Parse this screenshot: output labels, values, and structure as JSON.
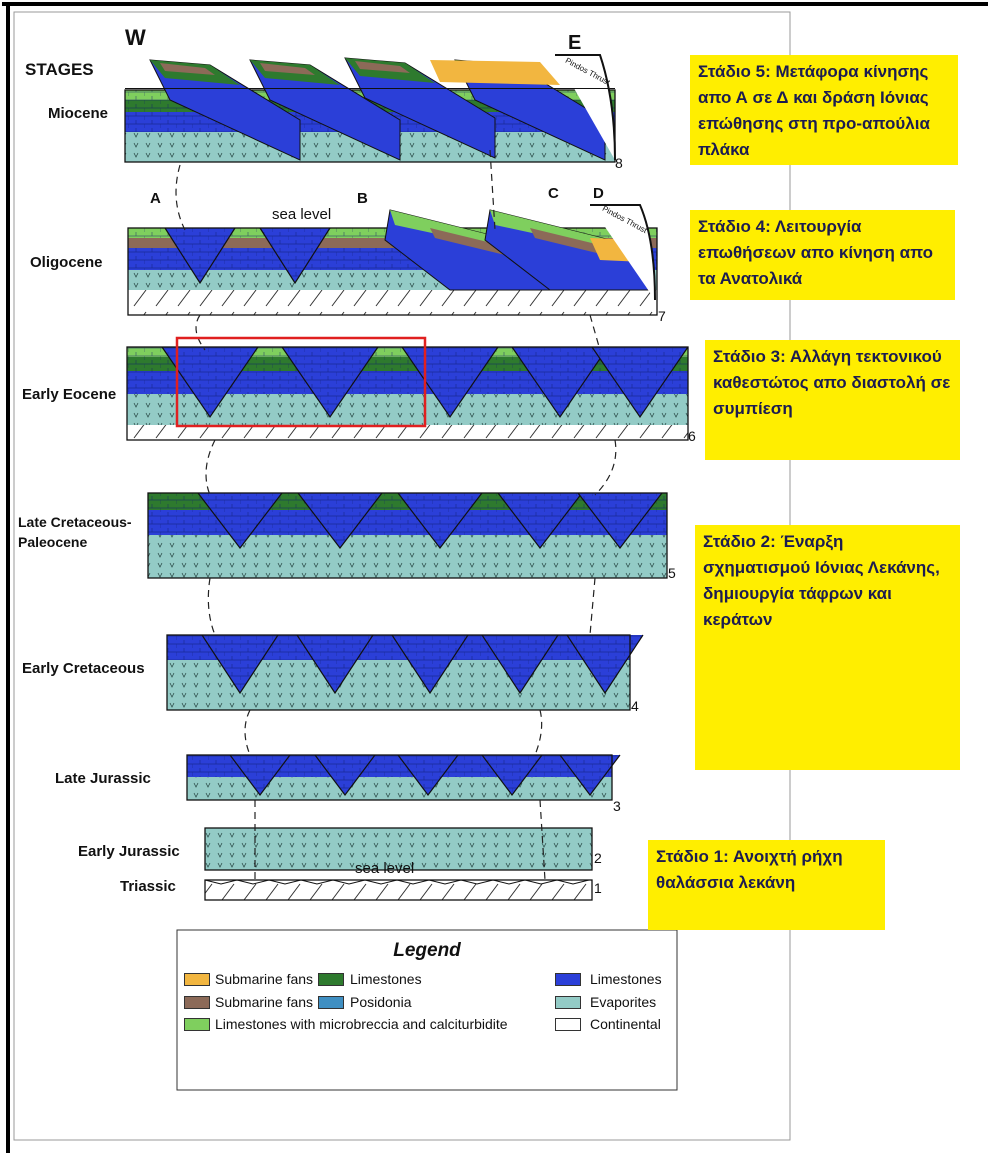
{
  "header": {
    "west": "W",
    "east": "E",
    "stages_title": "STAGES"
  },
  "stages": [
    {
      "label": "Miocene",
      "number": "8"
    },
    {
      "label": "Oligocene",
      "number": "7"
    },
    {
      "label": "Early Eocene",
      "number": "6"
    },
    {
      "label": "Late Cretaceous-Paleocene",
      "number": "5"
    },
    {
      "label": "Early Cretaceous",
      "number": "4"
    },
    {
      "label": "Late Jurassic",
      "number": "3"
    },
    {
      "label": "Early Jurassic",
      "number": "2"
    },
    {
      "label": "Triassic",
      "number": "1"
    }
  ],
  "section_letters": [
    "A",
    "B",
    "C",
    "D"
  ],
  "sea_level_labels": [
    "sea level",
    "sea level"
  ],
  "thrust_labels": [
    "Pindos Thrust",
    "Pindos Thrust"
  ],
  "notes": [
    "Στάδιο 5: Μετάφορα κίνησης απο Α σε Δ και δράση Ιόνιας επώθησης στη προ-απούλια πλάκα",
    "Στάδιο 4: Λειτουργία επωθήσεων απο κίνηση απο τα Ανατολικά",
    "Στάδιο 3: Αλλάγη τεκτονικού καθεστώτος απο διαστολή σε συμπίεση",
    "Στάδιο 2: Έναρξη σχηματισμού Ιόνιας Λεκάνης, δημιουργία τάφρων και κεράτων",
    "Στάδιο 1: Ανοιχτή ρήχη θαλάσσια λεκάνη"
  ],
  "legend": {
    "title": "Legend",
    "items": [
      {
        "label": "Submarine fans",
        "color": "#f2b640"
      },
      {
        "label": "Submarine fans",
        "color": "#8c6a58"
      },
      {
        "label": "Limestones with microbreccia and calciturbidite",
        "color": "#7fcf5e"
      },
      {
        "label": "Limestones",
        "color": "#2e7a2e"
      },
      {
        "label": "Posidonia",
        "color": "#3f8fc2"
      },
      {
        "label": "Limestones",
        "color": "#2b3fd8"
      },
      {
        "label": "Evaporites",
        "color": "#93cbc6"
      },
      {
        "label": "Continental",
        "color": "#ffffff"
      }
    ]
  }
}
